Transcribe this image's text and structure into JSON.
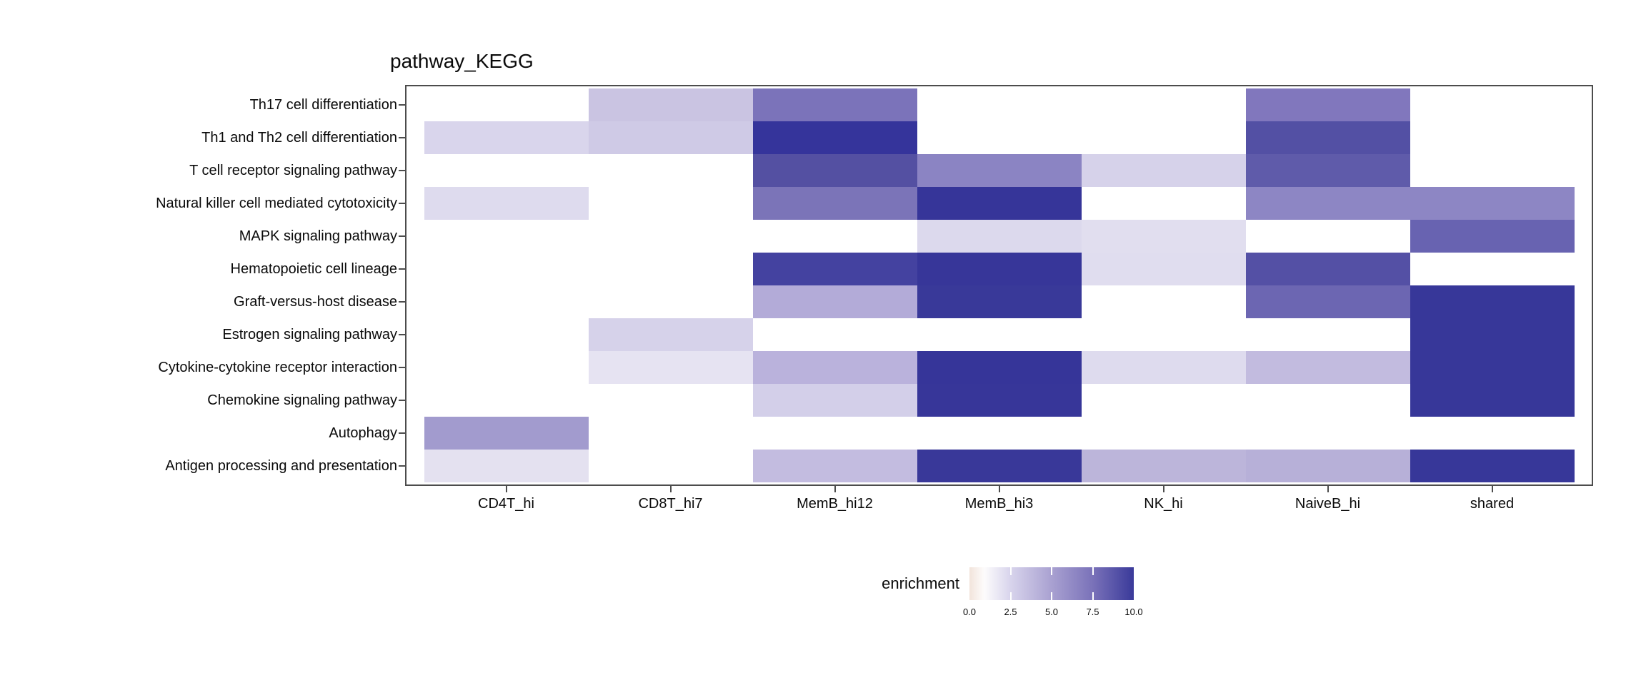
{
  "title": "pathway_KEGG",
  "legend": {
    "label": "enrichment",
    "tick_labels": [
      "0.0",
      "2.5",
      "5.0",
      "7.5",
      "10.0"
    ],
    "gradient_colors": [
      "#F2E4DB",
      "#FDFCFC",
      "#D8D4EC",
      "#A9A1D1",
      "#7A72B9",
      "#3A3A9A"
    ],
    "gradient_stops_pct": [
      0,
      9,
      25,
      50,
      75,
      100
    ]
  },
  "chart_data": {
    "type": "heatmap",
    "title": "pathway_KEGG",
    "legend_label": "enrichment",
    "colorbar_range": [
      0,
      10
    ],
    "colorbar_ticks": [
      0.0,
      2.5,
      5.0,
      7.5,
      10.0
    ],
    "columns": [
      "CD4T_hi",
      "CD8T_hi7",
      "MemB_hi12",
      "MemB_hi3",
      "NK_hi",
      "NaiveB_hi",
      "shared"
    ],
    "rows": [
      "Th17 cell differentiation",
      "Th1 and Th2 cell differentiation",
      "T cell receptor signaling pathway",
      "Natural killer cell mediated cytotoxicity",
      "MAPK signaling pathway",
      "Hematopoietic cell lineage",
      "Graft-versus-host disease",
      "Estrogen signaling pathway",
      "Cytokine-cytokine receptor interaction",
      "Chemokine signaling pathway",
      "Autophagy",
      "Antigen processing and presentation"
    ],
    "values_enrichment": [
      [
        null,
        3.3,
        7.4,
        null,
        null,
        7.1,
        null
      ],
      [
        2.4,
        3.0,
        10.0,
        null,
        null,
        8.9,
        null
      ],
      [
        null,
        null,
        8.9,
        6.6,
        2.7,
        8.6,
        null
      ],
      [
        2.2,
        null,
        7.4,
        10.0,
        null,
        6.5,
        6.5
      ],
      [
        null,
        null,
        null,
        2.3,
        2.0,
        null,
        8.2
      ],
      [
        null,
        null,
        9.6,
        10.0,
        2.1,
        8.9,
        null
      ],
      [
        null,
        null,
        4.4,
        10.0,
        null,
        8.0,
        10.0
      ],
      [
        null,
        2.7,
        null,
        null,
        null,
        null,
        10.0
      ],
      [
        null,
        1.8,
        4.1,
        10.0,
        2.2,
        3.7,
        10.0
      ],
      [
        null,
        null,
        2.7,
        10.0,
        null,
        null,
        10.0
      ],
      [
        5.4,
        null,
        null,
        null,
        null,
        null,
        null
      ],
      [
        1.9,
        null,
        3.7,
        10.0,
        4.1,
        4.2,
        10.0
      ]
    ],
    "cell_colors": [
      [
        null,
        "#CAC4E2",
        "#7B73BA",
        null,
        null,
        "#8177BD",
        null
      ],
      [
        "#D9D5EC",
        "#CFCAE6",
        "#35349B",
        null,
        null,
        "#5350A4",
        null
      ],
      [
        null,
        null,
        "#5450A2",
        "#8B84C3",
        "#D6D2EA",
        "#5F5BAA",
        null
      ],
      [
        "#DEDBEE",
        null,
        "#7B74B8",
        "#363599",
        null,
        "#8D86C4",
        "#8D86C4"
      ],
      [
        null,
        null,
        null,
        "#DCD9ED",
        "#E1DEEF",
        null,
        "#6863B1"
      ],
      [
        null,
        null,
        "#4442A0",
        "#373699",
        "#E0DDEF",
        "#5450A5",
        null
      ],
      [
        null,
        null,
        "#B3ABD8",
        "#393999",
        null,
        "#6C66B2",
        "#373799"
      ],
      [
        null,
        "#D6D2EA",
        null,
        null,
        null,
        null,
        "#373799"
      ],
      [
        null,
        "#E6E3F2",
        "#BAB2DC",
        "#363599",
        "#DEDBEE",
        "#C2BBDF",
        "#373799"
      ],
      [
        null,
        null,
        "#D3CFE9",
        "#373699",
        null,
        null,
        "#373799"
      ],
      [
        "#A29BCE",
        null,
        null,
        null,
        null,
        null,
        null
      ],
      [
        "#E4E1F0",
        null,
        "#C3BCE0",
        "#393899",
        "#BCB5DA",
        "#B7B0D8",
        "#373799"
      ]
    ],
    "missing_color": "#FFFFFF",
    "layout_hints": {
      "grid": "off",
      "legend_position": "bottom-center",
      "panel_border": "gray"
    }
  }
}
